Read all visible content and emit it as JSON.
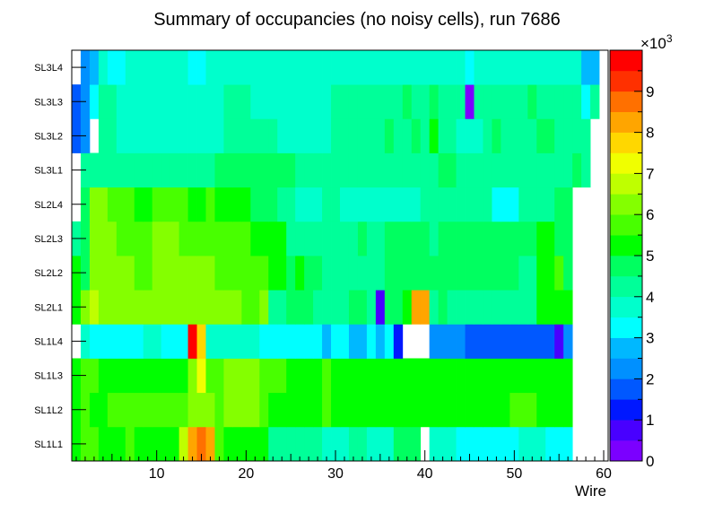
{
  "chart_data": {
    "type": "heatmap",
    "title": "Summary of occupancies (no noisy cells), run 7686",
    "xlabel": "Wire",
    "ylabel": "",
    "xlim": [
      0.5,
      60.5
    ],
    "x_ticks": [
      10,
      20,
      30,
      40,
      50,
      60
    ],
    "layers": [
      "SL1L1",
      "SL1L2",
      "SL1L3",
      "SL1L4",
      "SL2L1",
      "SL2L2",
      "SL2L3",
      "SL2L4",
      "SL3L1",
      "SL3L2",
      "SL3L3",
      "SL3L4"
    ],
    "z_range": [
      0,
      10000
    ],
    "z_ticks": [
      "0",
      "1",
      "2",
      "3",
      "4",
      "5",
      "6",
      "7",
      "8",
      "9"
    ],
    "z_exponent_label": "×10",
    "z_exponent": "3",
    "values": [
      [
        5.2,
        5.6,
        5.6,
        5.2,
        5.2,
        5.2,
        5.6,
        5.2,
        5.2,
        5.2,
        5.2,
        5.2,
        6.8,
        8.2,
        8.8,
        8.2,
        5.6,
        5.2,
        5.2,
        5.2,
        5.2,
        5.2,
        4.4,
        4.4,
        4.4,
        4.4,
        4.4,
        4.4,
        3.6,
        3.6,
        3.6,
        4.0,
        4.0,
        3.6,
        3.6,
        3.6,
        4.8,
        4.8,
        4.8,
        0,
        3.6,
        3.6,
        3.6,
        3.2,
        3.2,
        3.2,
        3.2,
        3.2,
        3.2,
        3.2,
        3.6,
        3.6,
        3.6,
        3.2,
        3.2,
        3.2,
        0,
        0,
        0,
        0
      ],
      [
        5.2,
        5.6,
        5.2,
        5.2,
        5.6,
        5.6,
        5.6,
        5.6,
        5.6,
        5.6,
        5.6,
        5.6,
        5.6,
        6.0,
        6.0,
        6.0,
        5.6,
        6.0,
        6.0,
        6.0,
        6.0,
        5.6,
        5.2,
        5.2,
        5.2,
        5.2,
        5.2,
        5.2,
        5.6,
        5.2,
        5.2,
        5.2,
        5.2,
        5.2,
        5.2,
        5.2,
        5.2,
        5.2,
        5.2,
        5.2,
        5.2,
        5.2,
        5.2,
        5.2,
        5.2,
        5.2,
        5.2,
        5.2,
        5.2,
        5.6,
        5.6,
        5.6,
        5.2,
        5.2,
        5.2,
        5.2,
        0,
        0,
        0,
        0
      ],
      [
        5.2,
        5.6,
        5.6,
        5.2,
        5.2,
        5.2,
        5.2,
        5.2,
        5.2,
        5.2,
        5.2,
        5.2,
        5.2,
        6.0,
        7.2,
        5.6,
        5.6,
        6.0,
        6.0,
        6.0,
        6.0,
        5.6,
        5.6,
        5.6,
        5.2,
        5.2,
        5.2,
        5.2,
        5.6,
        5.2,
        5.2,
        5.2,
        5.2,
        5.2,
        5.2,
        5.2,
        5.2,
        5.2,
        5.2,
        5.2,
        5.2,
        5.2,
        5.2,
        5.2,
        5.2,
        5.2,
        5.2,
        5.2,
        5.2,
        5.2,
        5.2,
        5.2,
        5.2,
        5.2,
        5.2,
        5.2,
        0,
        0,
        0,
        0
      ],
      [
        0,
        3.6,
        3.2,
        3.2,
        3.2,
        3.2,
        3.2,
        3.2,
        3.6,
        3.6,
        3.2,
        3.2,
        3.2,
        9.6,
        7.6,
        3.6,
        3.6,
        3.6,
        3.6,
        3.6,
        3.6,
        3.2,
        3.2,
        3.2,
        3.2,
        3.2,
        3.2,
        3.2,
        2.8,
        3.2,
        3.2,
        2.8,
        2.8,
        3.2,
        2.8,
        3.2,
        1.2,
        0,
        0,
        0,
        2.0,
        2.4,
        2.4,
        2.4,
        1.6,
        1.6,
        1.6,
        1.6,
        1.6,
        1.6,
        1.6,
        1.6,
        1.6,
        1.6,
        0.6,
        2.4,
        0,
        0,
        0,
        0
      ],
      [
        5.2,
        6.0,
        6.8,
        6.0,
        6.0,
        6.4,
        6.4,
        6.4,
        6.4,
        6.4,
        6.4,
        6.0,
        6.4,
        6.4,
        6.4,
        6.4,
        6.4,
        6.4,
        6.4,
        5.6,
        5.6,
        6.0,
        4.4,
        4.4,
        4.8,
        4.8,
        4.8,
        4.4,
        4.4,
        4.4,
        4.4,
        4.8,
        4.8,
        4.4,
        0.6,
        4.8,
        4.8,
        5.2,
        8.4,
        8.4,
        4.4,
        4.8,
        4.4,
        4.4,
        4.4,
        4.4,
        4.4,
        4.4,
        4.4,
        4.4,
        4.4,
        4.4,
        5.2,
        5.2,
        5.2,
        5.2,
        0,
        0,
        0,
        0
      ],
      [
        5.2,
        4.8,
        6.4,
        6.0,
        6.0,
        6.0,
        6.0,
        5.6,
        5.6,
        6.0,
        6.4,
        6.4,
        6.4,
        6.4,
        6.4,
        6.0,
        5.6,
        5.6,
        5.6,
        5.6,
        5.6,
        5.6,
        5.2,
        5.2,
        4.8,
        5.2,
        4.8,
        4.8,
        4.4,
        4.4,
        4.4,
        4.4,
        4.4,
        4.4,
        4.4,
        4.8,
        4.8,
        4.8,
        4.8,
        4.8,
        4.8,
        4.8,
        4.8,
        4.8,
        4.8,
        4.8,
        4.8,
        4.8,
        4.8,
        4.8,
        4.4,
        4.4,
        5.2,
        5.2,
        5.6,
        4.8,
        0,
        0,
        0,
        0
      ],
      [
        4.4,
        4.8,
        6.0,
        6.0,
        6.0,
        5.6,
        5.6,
        5.6,
        5.6,
        6.0,
        6.0,
        6.0,
        5.6,
        5.6,
        5.6,
        5.6,
        5.6,
        5.6,
        5.6,
        5.6,
        5.2,
        5.2,
        5.2,
        5.2,
        4.4,
        4.4,
        4.4,
        4.4,
        4.4,
        4.4,
        4.4,
        4.4,
        4.8,
        4.4,
        4.4,
        4.8,
        4.8,
        4.8,
        4.8,
        4.8,
        4.4,
        4.8,
        4.8,
        4.8,
        4.8,
        4.8,
        4.8,
        4.8,
        4.8,
        4.8,
        4.8,
        4.8,
        5.2,
        5.2,
        4.8,
        4.8,
        0,
        0,
        0,
        0
      ],
      [
        0,
        4.8,
        6.0,
        6.0,
        5.6,
        5.6,
        5.6,
        5.2,
        5.2,
        5.6,
        5.6,
        5.6,
        5.6,
        5.2,
        5.2,
        5.6,
        5.2,
        5.2,
        5.2,
        5.2,
        4.8,
        4.8,
        4.8,
        4.4,
        4.4,
        3.6,
        3.6,
        3.6,
        4.4,
        4.4,
        3.6,
        3.6,
        3.6,
        3.6,
        3.6,
        3.6,
        3.6,
        3.6,
        3.6,
        4.0,
        4.0,
        4.0,
        4.0,
        4.0,
        4.0,
        4.0,
        4.0,
        3.2,
        3.2,
        3.2,
        4.0,
        4.0,
        4.4,
        4.4,
        4.8,
        4.8,
        0,
        0,
        0,
        0
      ],
      [
        0,
        4.0,
        4.0,
        4.4,
        4.4,
        4.0,
        4.0,
        4.4,
        4.4,
        4.4,
        4.4,
        4.0,
        4.0,
        4.4,
        4.4,
        4.4,
        4.8,
        4.8,
        4.8,
        4.8,
        4.8,
        4.8,
        4.8,
        4.8,
        4.8,
        4.0,
        4.4,
        4.4,
        4.4,
        4.4,
        4.4,
        4.4,
        4.4,
        4.4,
        4.4,
        4.4,
        4.4,
        4.4,
        4.4,
        4.4,
        4.4,
        4.8,
        4.8,
        4.4,
        4.0,
        4.4,
        4.4,
        4.4,
        4.4,
        4.4,
        4.4,
        4.4,
        4.4,
        4.4,
        4.4,
        4.4,
        4.8,
        4.0,
        0,
        0
      ],
      [
        1.6,
        2.4,
        0,
        4.0,
        4.0,
        3.6,
        3.6,
        3.6,
        3.6,
        3.6,
        3.6,
        3.6,
        3.6,
        3.6,
        3.6,
        3.6,
        3.6,
        4.0,
        4.0,
        4.0,
        4.0,
        4.4,
        4.4,
        3.6,
        3.6,
        3.6,
        3.6,
        3.6,
        3.6,
        4.4,
        4.4,
        4.4,
        4.4,
        4.4,
        4.4,
        4.8,
        4.4,
        4.4,
        4.8,
        4.4,
        5.2,
        4.4,
        4.4,
        3.6,
        3.6,
        3.6,
        4.4,
        4.8,
        4.4,
        4.4,
        4.4,
        4.4,
        4.8,
        4.8,
        4.4,
        4.4,
        4.4,
        4.4,
        0,
        0
      ],
      [
        1.6,
        2.4,
        3.2,
        4.0,
        4.0,
        3.6,
        3.6,
        3.6,
        3.6,
        3.6,
        3.6,
        3.6,
        3.6,
        3.6,
        3.6,
        3.6,
        3.6,
        4.4,
        4.4,
        4.4,
        3.6,
        3.6,
        3.6,
        3.6,
        3.6,
        3.6,
        3.6,
        3.6,
        3.6,
        4.4,
        4.4,
        4.4,
        4.4,
        4.4,
        4.4,
        4.4,
        4.4,
        4.8,
        4.4,
        4.4,
        4.8,
        4.0,
        4.0,
        4.0,
        0.4,
        4.0,
        4.4,
        4.4,
        4.4,
        4.4,
        4.4,
        4.8,
        4.4,
        4.4,
        4.4,
        4.4,
        4.4,
        3.2,
        4.0,
        0
      ],
      [
        0,
        2.0,
        2.8,
        3.6,
        3.2,
        3.2,
        3.6,
        3.6,
        3.6,
        3.6,
        3.6,
        3.6,
        3.6,
        3.2,
        3.2,
        3.6,
        3.6,
        3.6,
        3.6,
        3.6,
        3.6,
        3.6,
        3.6,
        3.6,
        3.6,
        3.6,
        3.6,
        3.6,
        3.6,
        3.6,
        3.6,
        3.6,
        3.6,
        3.6,
        3.6,
        3.6,
        3.6,
        3.6,
        3.6,
        3.6,
        3.6,
        3.6,
        3.6,
        3.6,
        3.2,
        3.6,
        3.6,
        3.6,
        3.6,
        3.6,
        3.6,
        3.6,
        3.6,
        3.6,
        3.6,
        3.6,
        3.6,
        2.8,
        2.8,
        0
      ]
    ]
  }
}
